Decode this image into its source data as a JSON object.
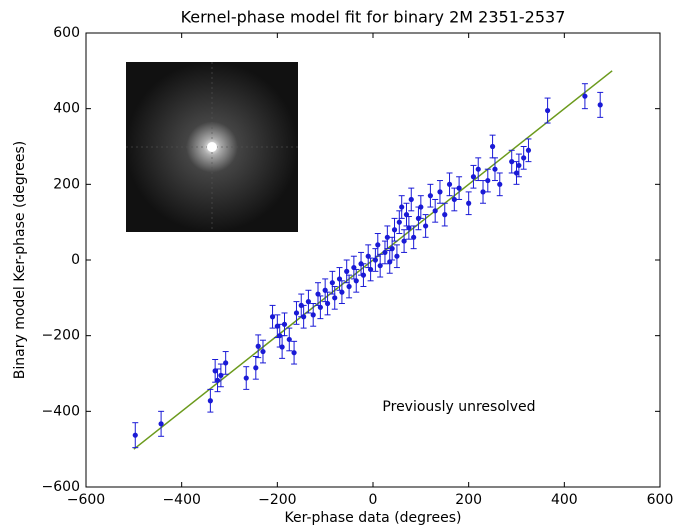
{
  "chart_data": {
    "type": "scatter",
    "title": "Kernel-phase model fit for binary 2M 2351-2537",
    "x_label": "Ker-phase data (degrees)",
    "y_label": "Binary model Ker-phase (degrees)",
    "annotation": "Previously unresolved",
    "xlim": [
      -600,
      600
    ],
    "ylim": [
      -600,
      600
    ],
    "xticks": [
      {
        "value": -600,
        "label": "−600"
      },
      {
        "value": -400,
        "label": "−400"
      },
      {
        "value": -200,
        "label": "−200"
      },
      0,
      200,
      400,
      600
    ],
    "yticks": [
      {
        "value": -600,
        "label": "−600"
      },
      {
        "value": -400,
        "label": "−400"
      },
      {
        "value": -200,
        "label": "−200"
      },
      0,
      200,
      400,
      600
    ],
    "fit_line": {
      "x": [
        -500,
        500
      ],
      "y": [
        -500,
        500
      ],
      "color": "#6b9a1c"
    },
    "series": [
      {
        "color": "#1a1ad6",
        "x": [
          -497,
          -443,
          -340,
          -330,
          -325,
          -318,
          -308,
          -265,
          -245,
          -240,
          -230,
          -210,
          -200,
          -195,
          -190,
          -185,
          -175,
          -165,
          -160,
          -150,
          -145,
          -135,
          -125,
          -115,
          -110,
          -100,
          -95,
          -85,
          -80,
          -70,
          -65,
          -55,
          -50,
          -40,
          -35,
          -25,
          -20,
          -10,
          -5,
          5,
          10,
          15,
          25,
          30,
          35,
          40,
          45,
          50,
          55,
          60,
          65,
          70,
          75,
          80,
          85,
          95,
          100,
          110,
          120,
          130,
          140,
          150,
          160,
          170,
          180,
          200,
          210,
          220,
          230,
          240,
          250,
          255,
          265,
          290,
          300,
          305,
          315,
          325,
          365,
          443,
          475
        ],
        "values": [
          -463,
          -433,
          -372,
          -293,
          -318,
          -305,
          -272,
          -312,
          -285,
          -228,
          -242,
          -150,
          -175,
          -200,
          -230,
          -170,
          -210,
          -245,
          -140,
          -120,
          -150,
          -110,
          -145,
          -90,
          -125,
          -80,
          -115,
          -60,
          -100,
          -50,
          -85,
          -30,
          -70,
          -20,
          -55,
          -10,
          -40,
          10,
          -25,
          0,
          40,
          -15,
          20,
          60,
          -5,
          30,
          80,
          10,
          100,
          140,
          50,
          120,
          85,
          160,
          60,
          110,
          140,
          90,
          170,
          130,
          180,
          120,
          200,
          160,
          190,
          150,
          220,
          240,
          180,
          210,
          300,
          240,
          200,
          260,
          230,
          250,
          270,
          290,
          395,
          433,
          410
        ],
        "errors": [
          33,
          33,
          30,
          30,
          30,
          30,
          30,
          30,
          30,
          30,
          30,
          30,
          30,
          30,
          30,
          30,
          30,
          30,
          30,
          30,
          30,
          30,
          30,
          30,
          30,
          30,
          30,
          30,
          30,
          30,
          30,
          30,
          30,
          30,
          30,
          30,
          30,
          30,
          30,
          30,
          30,
          30,
          30,
          30,
          30,
          30,
          30,
          30,
          30,
          30,
          30,
          30,
          30,
          30,
          30,
          30,
          30,
          30,
          30,
          30,
          30,
          30,
          30,
          30,
          30,
          30,
          30,
          30,
          30,
          30,
          30,
          30,
          30,
          30,
          30,
          30,
          30,
          30,
          33,
          33,
          33
        ]
      }
    ]
  }
}
